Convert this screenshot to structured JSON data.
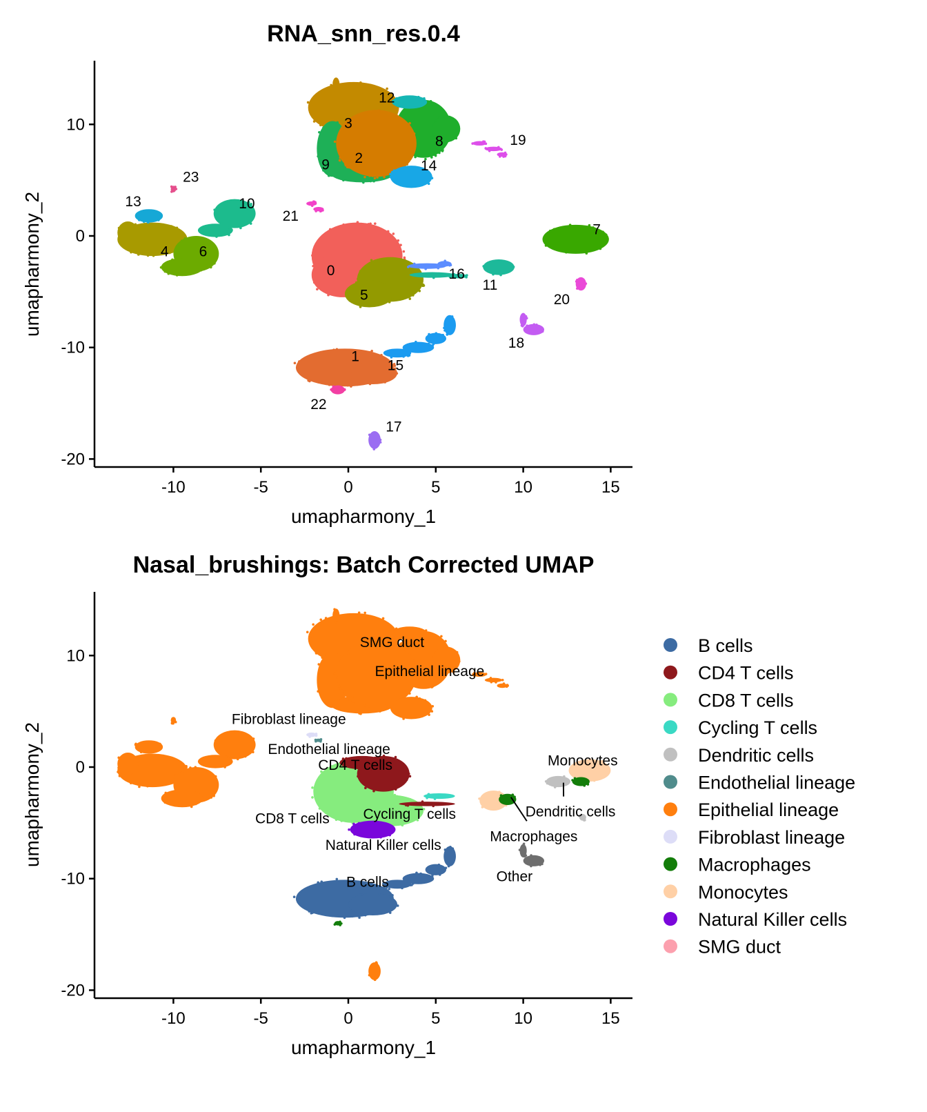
{
  "chart_data": [
    {
      "type": "scatter",
      "title": "RNA_snn_res.0.4",
      "xlabel": "umapharmony_1",
      "ylabel": "umapharmony_2",
      "xlim": [
        -14.5,
        16.3
      ],
      "ylim": [
        -20.8,
        15.7
      ],
      "xticks": [
        -10,
        -5,
        0,
        5,
        10,
        15
      ],
      "yticks": [
        10,
        0,
        -10,
        -20
      ],
      "grid": false,
      "groups": [
        {
          "name": "4",
          "color": "#A89A00",
          "blobs": [
            [
              -11.2,
              -0.3,
              2.0,
              1.5
            ],
            [
              -12.6,
              0.3,
              0.6,
              1.0
            ]
          ]
        },
        {
          "name": "6",
          "color": "#6CAB00",
          "blobs": [
            [
              -8.7,
              -1.6,
              1.3,
              1.6
            ],
            [
              -9.5,
              -2.8,
              1.2,
              0.8
            ]
          ]
        },
        {
          "name": "10",
          "color": "#1CBB8D",
          "blobs": [
            [
              -6.5,
              2.0,
              1.2,
              1.3
            ],
            [
              -7.6,
              0.5,
              1.0,
              0.6
            ]
          ]
        },
        {
          "name": "13",
          "color": "#16A8D6",
          "blobs": [
            [
              -11.4,
              1.8,
              0.8,
              0.6
            ]
          ]
        },
        {
          "name": "23",
          "color": "#E54F8C",
          "blobs": [
            [
              -10.0,
              4.2,
              0.15,
              0.3
            ]
          ]
        },
        {
          "name": "0",
          "color": "#F2605A",
          "blobs": [
            [
              0.5,
              -1.8,
              2.6,
              3.0
            ],
            [
              -0.3,
              -3.5,
              1.8,
              2.0
            ]
          ]
        },
        {
          "name": "5",
          "color": "#939A00",
          "blobs": [
            [
              2.4,
              -3.9,
              1.9,
              2.0
            ],
            [
              1.2,
              -5.2,
              1.4,
              1.2
            ]
          ]
        },
        {
          "name": "3",
          "color": "#C38A00",
          "blobs": [
            [
              0.3,
              11.5,
              2.6,
              2.3
            ],
            [
              -0.7,
              13.6,
              0.2,
              0.6
            ]
          ]
        },
        {
          "name": "9",
          "color": "#1EB057",
          "blobs": [
            [
              -0.9,
              7.8,
              0.9,
              2.5
            ],
            [
              0.8,
              5.6,
              1.8,
              0.8
            ]
          ]
        },
        {
          "name": "8",
          "color": "#1FAE2C",
          "blobs": [
            [
              4.3,
              9.6,
              1.6,
              2.6
            ],
            [
              5.6,
              9.6,
              0.8,
              1.2
            ]
          ]
        },
        {
          "name": "12",
          "color": "#16B6B4",
          "blobs": [
            [
              3.5,
              12.0,
              1.0,
              0.6
            ]
          ]
        },
        {
          "name": "2",
          "color": "#D57C00",
          "blobs": [
            [
              1.6,
              8.3,
              2.3,
              3.0
            ]
          ]
        },
        {
          "name": "14",
          "color": "#18A7E6",
          "blobs": [
            [
              3.6,
              5.3,
              1.2,
              1.0
            ]
          ]
        },
        {
          "name": "1",
          "color": "#E36C30",
          "blobs": [
            [
              -0.2,
              -11.8,
              2.8,
              1.7
            ],
            [
              1.4,
              -12.3,
              1.4,
              1.0
            ]
          ]
        },
        {
          "name": "15",
          "color": "#1B9BF0",
          "blobs": [
            [
              2.8,
              -10.5,
              0.8,
              0.4
            ],
            [
              4.0,
              -10.0,
              0.9,
              0.5
            ],
            [
              5.0,
              -9.2,
              0.6,
              0.5
            ],
            [
              5.8,
              -8.0,
              0.35,
              0.9
            ]
          ]
        },
        {
          "name": "16",
          "color": "#5C8DFF",
          "blobs": [
            [
              4.5,
              -2.7,
              1.1,
              0.25
            ],
            [
              5.5,
              -2.5,
              0.4,
              0.25
            ]
          ]
        },
        {
          "name": "11",
          "color": "#1DB99A",
          "blobs": [
            [
              8.6,
              -2.8,
              0.9,
              0.7
            ],
            [
              4.8,
              -3.5,
              1.3,
              0.25
            ],
            [
              6.3,
              -3.6,
              0.5,
              0.2
            ]
          ]
        },
        {
          "name": "7",
          "color": "#39A800",
          "blobs": [
            [
              13.0,
              -0.3,
              1.9,
              1.3
            ]
          ]
        },
        {
          "name": "20",
          "color": "#EA4AD8",
          "blobs": [
            [
              13.3,
              -4.3,
              0.3,
              0.6
            ]
          ]
        },
        {
          "name": "18",
          "color": "#C35CF2",
          "blobs": [
            [
              10.0,
              -7.5,
              0.2,
              0.6
            ],
            [
              10.6,
              -8.4,
              0.6,
              0.5
            ]
          ]
        },
        {
          "name": "19",
          "color": "#DD4FEA",
          "blobs": [
            [
              7.5,
              8.3,
              0.4,
              0.2
            ],
            [
              8.3,
              7.8,
              0.5,
              0.2
            ],
            [
              8.8,
              7.3,
              0.3,
              0.2
            ]
          ]
        },
        {
          "name": "17",
          "color": "#9B6DF2",
          "blobs": [
            [
              1.5,
              -18.3,
              0.35,
              0.8
            ]
          ]
        },
        {
          "name": "22",
          "color": "#F23FA3",
          "blobs": [
            [
              -0.6,
              -13.8,
              0.4,
              0.4
            ]
          ]
        },
        {
          "name": "21",
          "color": "#F242C8",
          "blobs": [
            [
              -2.1,
              2.9,
              0.3,
              0.2
            ],
            [
              -1.7,
              2.4,
              0.3,
              0.2
            ]
          ]
        }
      ],
      "labels": [
        {
          "text": "0",
          "x": -1.0,
          "y": -3.1
        },
        {
          "text": "1",
          "x": 0.4,
          "y": -10.8
        },
        {
          "text": "2",
          "x": 0.6,
          "y": 7.0
        },
        {
          "text": "3",
          "x": 0.0,
          "y": 10.1
        },
        {
          "text": "4",
          "x": -10.5,
          "y": -1.4
        },
        {
          "text": "5",
          "x": 0.9,
          "y": -5.3
        },
        {
          "text": "6",
          "x": -8.3,
          "y": -1.4
        },
        {
          "text": "7",
          "x": 14.2,
          "y": 0.6
        },
        {
          "text": "8",
          "x": 5.2,
          "y": 8.5
        },
        {
          "text": "9",
          "x": -1.3,
          "y": 6.4
        },
        {
          "text": "10",
          "x": -5.8,
          "y": 2.9
        },
        {
          "text": "11",
          "x": 8.1,
          "y": -4.4
        },
        {
          "text": "12",
          "x": 2.2,
          "y": 12.4
        },
        {
          "text": "13",
          "x": -12.3,
          "y": 3.1
        },
        {
          "text": "14",
          "x": 4.6,
          "y": 6.3
        },
        {
          "text": "15",
          "x": 2.7,
          "y": -11.6
        },
        {
          "text": "16",
          "x": 6.2,
          "y": -3.4
        },
        {
          "text": "17",
          "x": 2.6,
          "y": -17.1
        },
        {
          "text": "18",
          "x": 9.6,
          "y": -9.6
        },
        {
          "text": "19",
          "x": 9.7,
          "y": 8.6
        },
        {
          "text": "20",
          "x": 12.2,
          "y": -5.7
        },
        {
          "text": "21",
          "x": -3.3,
          "y": 1.8
        },
        {
          "text": "22",
          "x": -1.7,
          "y": -15.1
        },
        {
          "text": "23",
          "x": -9.0,
          "y": 5.3
        }
      ]
    },
    {
      "type": "scatter",
      "title": "Nasal_brushings: Batch Corrected UMAP",
      "xlabel": "umapharmony_1",
      "ylabel": "umapharmony_2",
      "xlim": [
        -14.5,
        16.3
      ],
      "ylim": [
        -20.8,
        15.7
      ],
      "xticks": [
        -10,
        -5,
        0,
        5,
        10,
        15
      ],
      "yticks": [
        10,
        0,
        -10,
        -20
      ],
      "grid": false,
      "legend_position": "right",
      "legend": [
        {
          "name": "B cells",
          "color": "#3D6BA3"
        },
        {
          "name": "CD4 T cells",
          "color": "#8E181C"
        },
        {
          "name": "CD8 T cells",
          "color": "#86EC7E"
        },
        {
          "name": "Cycling T cells",
          "color": "#3AD9C4"
        },
        {
          "name": "Dendritic cells",
          "color": "#C0C0C0"
        },
        {
          "name": "Endothelial lineage",
          "color": "#508C8C"
        },
        {
          "name": "Epithelial lineage",
          "color": "#FF7F0E"
        },
        {
          "name": "Fibroblast lineage",
          "color": "#DDDDF7"
        },
        {
          "name": "Macrophages",
          "color": "#137D0A"
        },
        {
          "name": "Monocytes",
          "color": "#FFD0A6"
        },
        {
          "name": "Natural Killer cells",
          "color": "#7A06DB"
        },
        {
          "name": "SMG duct",
          "color": "#FCA0AE"
        }
      ],
      "groups": [
        {
          "name": "Epithelial lineage",
          "color": "#FF7F0E",
          "blobs": [
            [
              -11.2,
              -0.3,
              2.0,
              1.5
            ],
            [
              -12.6,
              0.3,
              0.6,
              1.0
            ],
            [
              -8.7,
              -1.6,
              1.3,
              1.6
            ],
            [
              -9.5,
              -2.8,
              1.2,
              0.8
            ],
            [
              -6.5,
              2.0,
              1.2,
              1.3
            ],
            [
              -7.6,
              0.5,
              1.0,
              0.6
            ],
            [
              -11.4,
              1.8,
              0.8,
              0.6
            ],
            [
              -10.0,
              4.2,
              0.15,
              0.3
            ],
            [
              0.3,
              11.5,
              2.6,
              2.3
            ],
            [
              -0.7,
              13.6,
              0.2,
              0.6
            ],
            [
              -0.9,
              7.8,
              0.9,
              2.5
            ],
            [
              0.8,
              5.6,
              1.8,
              0.8
            ],
            [
              4.3,
              9.6,
              1.6,
              2.6
            ],
            [
              5.6,
              9.6,
              0.8,
              1.2
            ],
            [
              3.5,
              12.0,
              1.0,
              0.6
            ],
            [
              1.6,
              8.3,
              2.3,
              3.0
            ],
            [
              3.6,
              5.3,
              1.2,
              1.0
            ],
            [
              7.5,
              8.3,
              0.4,
              0.2
            ],
            [
              8.3,
              7.8,
              0.5,
              0.2
            ],
            [
              8.8,
              7.3,
              0.3,
              0.2
            ],
            [
              1.5,
              -18.3,
              0.35,
              0.8
            ]
          ]
        },
        {
          "name": "B cells",
          "color": "#3D6BA3",
          "blobs": [
            [
              -0.2,
              -11.8,
              2.8,
              1.7
            ],
            [
              1.4,
              -12.3,
              1.4,
              1.0
            ],
            [
              2.8,
              -10.5,
              0.8,
              0.4
            ],
            [
              4.0,
              -10.0,
              0.9,
              0.5
            ],
            [
              5.0,
              -9.2,
              0.6,
              0.5
            ],
            [
              5.8,
              -8.0,
              0.35,
              0.9
            ]
          ]
        },
        {
          "name": "CD8 T cells",
          "color": "#86EC7E",
          "blobs": [
            [
              0.3,
              -2.2,
              2.3,
              2.8
            ],
            [
              2.4,
              -3.9,
              1.9,
              1.4
            ]
          ]
        },
        {
          "name": "CD4 T cells",
          "color": "#8E181C",
          "blobs": [
            [
              2.0,
              -0.6,
              1.5,
              1.6
            ],
            [
              0.8,
              0.4,
              1.3,
              0.6
            ],
            [
              4.5,
              -3.3,
              1.6,
              0.2
            ]
          ]
        },
        {
          "name": "Natural Killer cells",
          "color": "#7A06DB",
          "blobs": [
            [
              1.4,
              -5.6,
              1.3,
              0.8
            ]
          ]
        },
        {
          "name": "Cycling T cells",
          "color": "#3AD9C4",
          "blobs": [
            [
              5.2,
              -2.6,
              0.9,
              0.25
            ]
          ]
        },
        {
          "name": "Monocytes",
          "color": "#FFD0A6",
          "blobs": [
            [
              8.3,
              -3.0,
              0.8,
              0.9
            ],
            [
              13.8,
              -0.3,
              1.2,
              1.0
            ]
          ]
        },
        {
          "name": "Dendritic cells",
          "color": "#C0C0C0",
          "blobs": [
            [
              12.0,
              -1.3,
              0.7,
              0.5
            ],
            [
              13.4,
              -4.5,
              0.2,
              0.3
            ]
          ]
        },
        {
          "name": "Macrophages",
          "color": "#137D0A",
          "blobs": [
            [
              9.1,
              -2.9,
              0.5,
              0.5
            ],
            [
              13.3,
              -1.3,
              0.5,
              0.4
            ],
            [
              -0.6,
              -14.0,
              0.2,
              0.2
            ]
          ]
        },
        {
          "name": "Other",
          "color": "#6E6E6E",
          "blobs": [
            [
              10.0,
              -7.5,
              0.2,
              0.6
            ],
            [
              10.6,
              -8.4,
              0.6,
              0.5
            ]
          ]
        },
        {
          "name": "Fibroblast lineage",
          "color": "#DDDDF7",
          "blobs": [
            [
              -2.1,
              2.9,
              0.3,
              0.2
            ]
          ]
        },
        {
          "name": "Endothelial lineage",
          "color": "#508C8C",
          "blobs": [
            [
              -1.7,
              2.4,
              0.2,
              0.15
            ]
          ]
        }
      ],
      "labels": [
        {
          "text": "SMG duct",
          "x": 2.5,
          "y": 11.2
        },
        {
          "text": "Epithelial lineage",
          "x": 4.65,
          "y": 8.6
        },
        {
          "text": "Fibroblast lineage",
          "x": -3.4,
          "y": 4.3
        },
        {
          "text": "Endothelial lineage",
          "x": -1.1,
          "y": 1.6
        },
        {
          "text": "CD4 T cells",
          "x": 0.4,
          "y": 0.2
        },
        {
          "text": "CD8 T cells",
          "x": -3.2,
          "y": -4.6
        },
        {
          "text": "Cycling T cells",
          "x": 3.5,
          "y": -4.2
        },
        {
          "text": "Natural Killer cells",
          "x": 2.0,
          "y": -7.0
        },
        {
          "text": "B cells",
          "x": 1.1,
          "y": -10.3
        },
        {
          "text": "Macrophages",
          "x": 10.6,
          "y": -6.2,
          "to": [
            9.3,
            -2.7
          ]
        },
        {
          "text": "Other",
          "x": 9.5,
          "y": -9.8
        },
        {
          "text": "Dendritic cells",
          "x": 12.7,
          "y": -4.0,
          "to": [
            12.3,
            -1.4
          ]
        },
        {
          "text": "Monocytes",
          "x": 13.4,
          "y": 0.6
        }
      ]
    }
  ]
}
